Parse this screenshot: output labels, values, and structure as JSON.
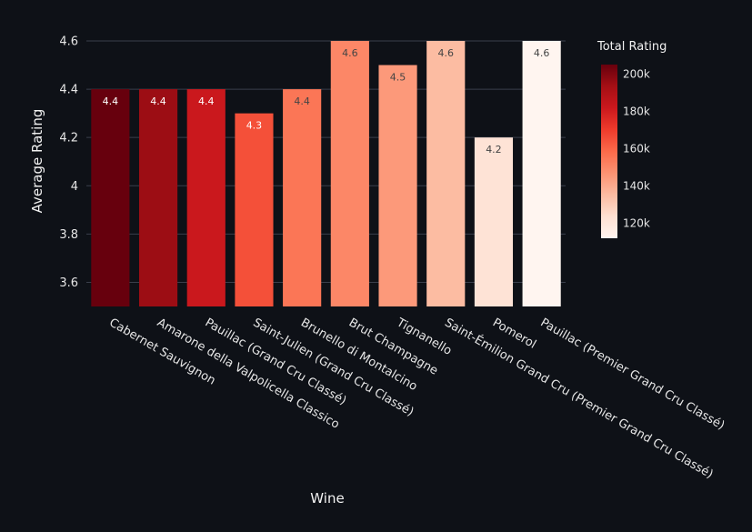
{
  "chart_data": {
    "type": "bar",
    "categories": [
      "Cabernet Sauvignon",
      "Amarone della Valpolicella Classico",
      "Pauillac (Grand Cru Classé)",
      "Saint-Julien (Grand Cru Classé)",
      "Brunello di Montalcino",
      "Brut Champagne",
      "Tignanello",
      "Saint-Émilion Grand Cru (Premier Grand Cru Classé)",
      "Pomerol",
      "Pauillac (Premier Grand Cru Classé)"
    ],
    "values": [
      4.4,
      4.4,
      4.4,
      4.3,
      4.4,
      4.6,
      4.5,
      4.6,
      4.2,
      4.6
    ],
    "value_labels": [
      "4.4",
      "4.4",
      "4.4",
      "4.3",
      "4.4",
      "4.6",
      "4.5",
      "4.6",
      "4.2",
      "4.6"
    ],
    "color_values": [
      205000,
      195000,
      182000,
      165000,
      155000,
      150000,
      145000,
      135000,
      122000,
      112000
    ],
    "xlabel": "Wine",
    "ylabel": "Average Rating",
    "ylim": [
      3.5,
      4.6
    ],
    "yticks": [
      3.6,
      3.8,
      4,
      4.2,
      4.4,
      4.6
    ],
    "ytick_labels": [
      "3.6",
      "3.8",
      "4",
      "4.2",
      "4.4",
      "4.6"
    ],
    "grid": true,
    "colorbar": {
      "title": "Total Rating",
      "range": [
        112000,
        205000
      ],
      "ticks": [
        120000,
        140000,
        160000,
        180000,
        200000
      ],
      "tick_labels": [
        "120k",
        "140k",
        "160k",
        "180k",
        "200k"
      ],
      "colorscale": [
        "#fff5f0",
        "#fee0d2",
        "#fcbba1",
        "#fc9272",
        "#fb6a4a",
        "#ef3b2c",
        "#cb181d",
        "#a50f15",
        "#67000d"
      ],
      "placement": "right"
    },
    "colors": {
      "background": "#0e1117",
      "grid": "#3a3f4b",
      "text": "#e6e6e6"
    }
  }
}
